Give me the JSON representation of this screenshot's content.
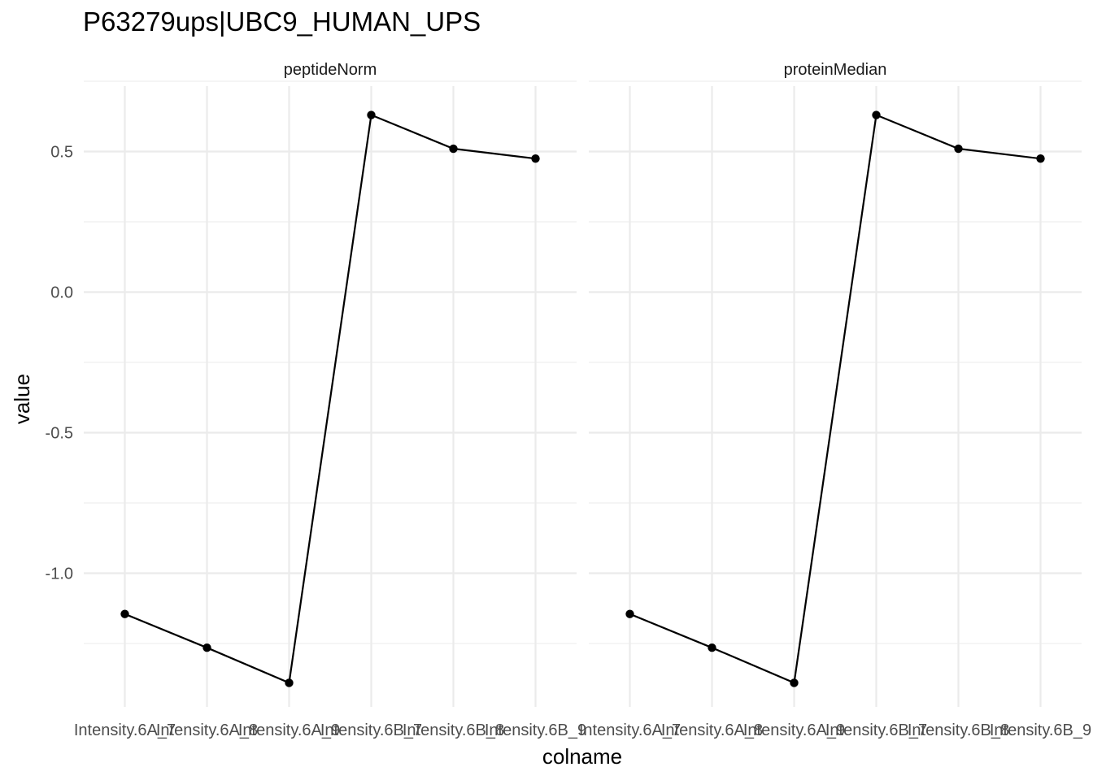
{
  "chart_data": {
    "type": "line",
    "title": "P63279ups|UBC9_HUMAN_UPS",
    "xlabel": "colname",
    "ylabel": "value",
    "ylim": [
      -1.4,
      0.72
    ],
    "yticks": [
      -1.0,
      -0.5,
      0.0,
      0.5
    ],
    "ytick_labels": [
      "-1.0",
      "-0.5",
      "0.0",
      "0.5"
    ],
    "grid": true,
    "categories": [
      "Intensity.6A_7",
      "Intensity.6A_8",
      "Intensity.6A_9",
      "Intensity.6B_7",
      "Intensity.6B_8",
      "Intensity.6B_9"
    ],
    "panels": [
      {
        "name": "peptideNorm",
        "values": [
          -1.145,
          -1.265,
          -1.39,
          0.63,
          0.51,
          0.475
        ]
      },
      {
        "name": "proteinMedian",
        "values": [
          -1.145,
          -1.265,
          -1.39,
          0.63,
          0.51,
          0.475
        ]
      }
    ]
  }
}
